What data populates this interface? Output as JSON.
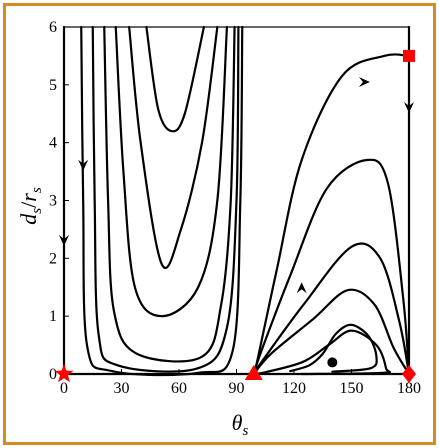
{
  "chart_data": {
    "type": "line",
    "xlabel": {
      "main": "θ",
      "sub": "s"
    },
    "ylabel": {
      "a": "d",
      "a_sub": "s",
      "slash": "/",
      "b": "r",
      "b_sub": "s"
    },
    "xlim": [
      0,
      180
    ],
    "ylim": [
      0,
      6
    ],
    "xticks": [
      "0",
      "30",
      "60",
      "90",
      "120",
      "150",
      "180"
    ],
    "yticks": [
      "0",
      "1",
      "2",
      "3",
      "4",
      "5",
      "6"
    ],
    "grid": false,
    "colors": {
      "curves": "#000000",
      "markers": "#ff0000",
      "frame": "#d68a1f"
    },
    "series": [
      {
        "points": [
          [
            9,
            6
          ],
          [
            10,
            3
          ],
          [
            12,
            0.5
          ],
          [
            25,
            0.05
          ],
          [
            70,
            0.02
          ],
          [
            88,
            0.4
          ],
          [
            92,
            3
          ],
          [
            93,
            6
          ]
        ]
      },
      {
        "points": [
          [
            15,
            6
          ],
          [
            16,
            3
          ],
          [
            18,
            0.7
          ],
          [
            28,
            0.15
          ],
          [
            70,
            0.1
          ],
          [
            85,
            0.8
          ],
          [
            90,
            3
          ],
          [
            91,
            6
          ]
        ]
      },
      {
        "points": [
          [
            21,
            6
          ],
          [
            23,
            3
          ],
          [
            26,
            1.1
          ],
          [
            38,
            0.35
          ],
          [
            72,
            0.3
          ],
          [
            82,
            1.2
          ],
          [
            87,
            3
          ],
          [
            89,
            6
          ]
        ]
      },
      {
        "points": [
          [
            27,
            6
          ],
          [
            31,
            3.5
          ],
          [
            37,
            1.5
          ],
          [
            51,
            1.0
          ],
          [
            70,
            1.5
          ],
          [
            80,
            3
          ],
          [
            85,
            6
          ]
        ]
      },
      {
        "points": [
          [
            34,
            6
          ],
          [
            40,
            4
          ],
          [
            51,
            1.9
          ],
          [
            61,
            2.5
          ],
          [
            72,
            4
          ],
          [
            80,
            6
          ]
        ]
      },
      {
        "points": [
          [
            43,
            6
          ],
          [
            49,
            4.6
          ],
          [
            56,
            4.2
          ],
          [
            63,
            4.5
          ],
          [
            73,
            6
          ]
        ]
      },
      {
        "points": [
          [
            99,
            0
          ],
          [
            101,
            0.25
          ],
          [
            111,
            1.8
          ],
          [
            124,
            3.7
          ],
          [
            145,
            5.15
          ],
          [
            167,
            5.5
          ],
          [
            180,
            5.5
          ]
        ]
      },
      {
        "points": [
          [
            99,
            0
          ],
          [
            103,
            0.4
          ],
          [
            118,
            1.7
          ],
          [
            137,
            3.2
          ],
          [
            158,
            3.7
          ],
          [
            169,
            3.3
          ],
          [
            177,
            1.3
          ],
          [
            180,
            0
          ]
        ]
      },
      {
        "points": [
          [
            99,
            0
          ],
          [
            104,
            0.25
          ],
          [
            125,
            1.2
          ],
          [
            150,
            2.2
          ],
          [
            165,
            2.0
          ],
          [
            175,
            0.9
          ],
          [
            180,
            0
          ]
        ]
      },
      {
        "points": [
          [
            99,
            0
          ],
          [
            108,
            0.35
          ],
          [
            130,
            0.95
          ],
          [
            148,
            1.45
          ],
          [
            162,
            1.2
          ],
          [
            172,
            0.45
          ],
          [
            180,
            0
          ]
        ]
      },
      {
        "points": [
          [
            101,
            0
          ],
          [
            124,
            0.2
          ],
          [
            138,
            0.5
          ],
          [
            150,
            0.75
          ],
          [
            163,
            0.5
          ],
          [
            168,
            0.1
          ],
          [
            166,
            0.02
          ],
          [
            124,
            0
          ]
        ]
      },
      {
        "points": [
          [
            118,
            0.05
          ],
          [
            128,
            0.15
          ],
          [
            135,
            0.35
          ],
          [
            142,
            0.7
          ],
          [
            150,
            0.85
          ],
          [
            159,
            0.65
          ],
          [
            163,
            0.3
          ],
          [
            160,
            0.1
          ],
          [
            140,
            0.04
          ]
        ]
      },
      {
        "points": [
          [
            0,
            6
          ],
          [
            0,
            0
          ]
        ]
      },
      {
        "points": [
          [
            180,
            6
          ],
          [
            180,
            0
          ]
        ]
      },
      {
        "points": [
          [
            0,
            0
          ],
          [
            180,
            0
          ]
        ]
      }
    ],
    "arrows": [
      {
        "x": 0,
        "y": 2.3,
        "dir": "down"
      },
      {
        "x": 10,
        "y": 3.6,
        "dir": "down"
      },
      {
        "x": 124,
        "y": 1.5,
        "dir": "up"
      },
      {
        "x": 157,
        "y": 5.05,
        "dir": "right"
      },
      {
        "x": 180,
        "y": 4.6,
        "dir": "down"
      }
    ],
    "markers": [
      {
        "name": "star",
        "shape": "star",
        "x": 0,
        "y": 0
      },
      {
        "name": "triangle",
        "shape": "triangle",
        "x": 99,
        "y": 0
      },
      {
        "name": "diamond",
        "shape": "diamond",
        "x": 180,
        "y": 0
      },
      {
        "name": "square",
        "shape": "square",
        "x": 180,
        "y": 5.5
      },
      {
        "name": "dot",
        "shape": "dot",
        "x": 140,
        "y": 0.2
      }
    ]
  }
}
